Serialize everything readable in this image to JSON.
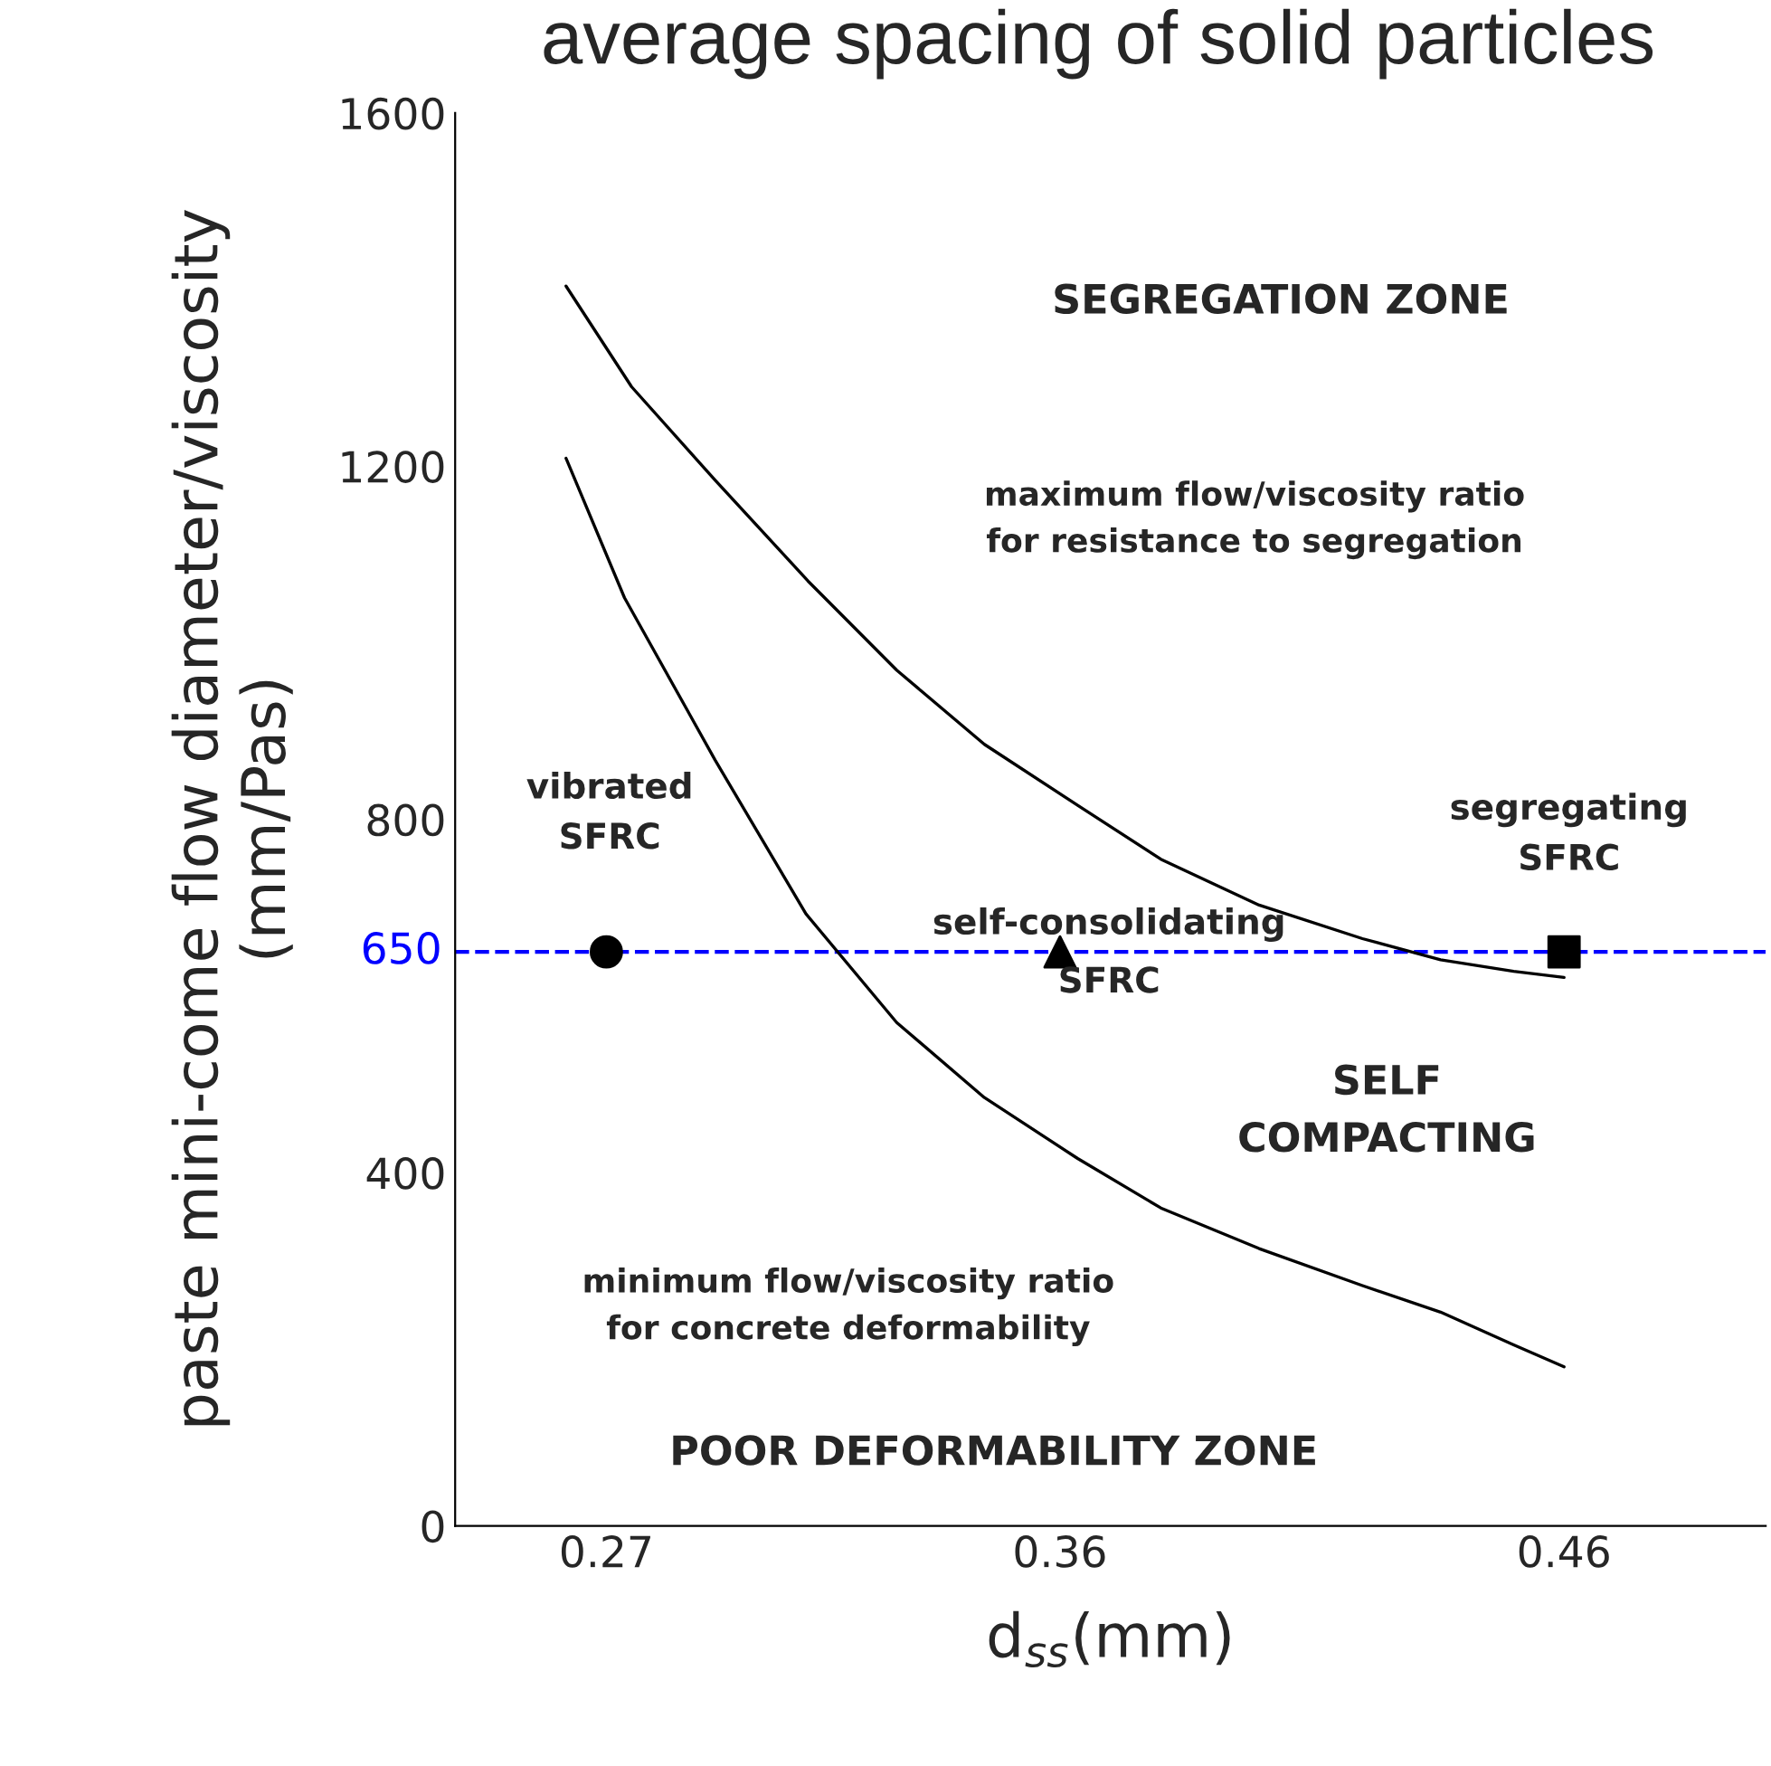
{
  "chart_data": {
    "type": "line",
    "title": "average spacing of solid particles",
    "xlabel": "d$_{ss}$(mm)",
    "ylabel": "paste mini-come flow diameter/viscosity\n(mm/Pas)",
    "xlim": [
      0.24,
      0.5
    ],
    "xticks": [
      0.27,
      0.36,
      0.46
    ],
    "ylim": [
      0,
      1600
    ],
    "yticks": [
      0,
      400,
      800,
      1200,
      1600
    ],
    "grid": false,
    "series": [
      {
        "color": "#000000",
        "x": [
          0.262,
          0.275,
          0.2916,
          0.31,
          0.3276,
          0.345,
          0.3635,
          0.38,
          0.3995,
          0.42,
          0.4355,
          0.45,
          0.46
        ],
        "values": [
          1404,
          1290,
          1184,
          1070,
          969,
          885,
          816,
          755,
          703,
          665,
          641,
          628,
          621
        ]
      },
      {
        "color": "#000000",
        "x": [
          0.262,
          0.2736,
          0.2916,
          0.3096,
          0.3276,
          0.345,
          0.3635,
          0.38,
          0.3995,
          0.42,
          0.4355,
          0.45,
          0.46
        ],
        "values": [
          1209,
          1051,
          867,
          693,
          570,
          485,
          416,
          360,
          314,
          272,
          242,
          205,
          180
        ]
      },
      {
        "type": "scatter",
        "marker": "circle",
        "color": "#000000",
        "x": [
          0.27
        ],
        "values": [
          650
        ]
      },
      {
        "type": "scatter",
        "marker": "triangle",
        "color": "#000000",
        "x": [
          0.36
        ],
        "values": [
          650
        ]
      },
      {
        "type": "scatter",
        "marker": "square",
        "color": "#000000",
        "x": [
          0.46
        ],
        "values": [
          650
        ]
      }
    ],
    "ref_lines": [
      {
        "axis": "y",
        "value": 650,
        "label": "650",
        "color": "#0000ff",
        "line_style": "dashed"
      }
    ],
    "annotations": [
      "SEGREGATION ZONE",
      "maximum flow/viscosity ratio\nfor resistance to segregation",
      "vibrated\nSFRC",
      "segregating\nSFRC",
      "self-consolidating\nSFRC",
      "SELF\nCOMPACTING",
      "minimum flow/viscosity ratio\nfor concrete deformability",
      "POOR DEFORMABILITY ZONE"
    ]
  }
}
